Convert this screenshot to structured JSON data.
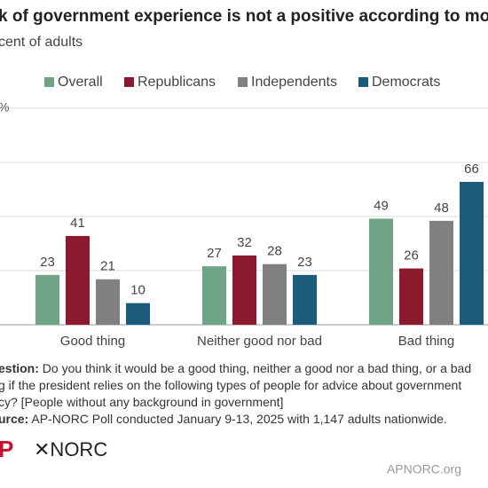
{
  "chart_data": {
    "type": "bar",
    "title": "k of government experience is not a positive according to mos",
    "subtitle": "cent of adults",
    "categories": [
      "Good thing",
      "Neither good nor bad",
      "Bad thing"
    ],
    "series": [
      {
        "name": "Overall",
        "color": "#6fa487",
        "values": [
          23,
          27,
          49
        ]
      },
      {
        "name": "Republicans",
        "color": "#8b1a2e",
        "values": [
          41,
          32,
          26
        ]
      },
      {
        "name": "Independents",
        "color": "#808080",
        "values": [
          21,
          28,
          48
        ]
      },
      {
        "name": "Democrats",
        "color": "#1b5b7b",
        "values": [
          10,
          23,
          66
        ]
      }
    ],
    "ylim": [
      0,
      100
    ],
    "yticks": [
      0,
      25,
      50,
      75,
      {
        "value": 100,
        "label": "%"
      }
    ],
    "grid": true,
    "notes": [
      {
        "bold": "estion:",
        "text": " Do you think it would be a good thing, neither a good nor a bad thing, or a bad"
      },
      {
        "text": "g if the president relies on the following types of people for advice about government"
      },
      {
        "text": "cy? [People without any background in government]"
      },
      {
        "bold": "urce:",
        "text": " AP-NORC Poll conducted January 9-13, 2025 with 1,147 adults nationwide."
      }
    ],
    "logos": [
      "P",
      "✕NORC"
    ],
    "website": "APNORC.org"
  }
}
